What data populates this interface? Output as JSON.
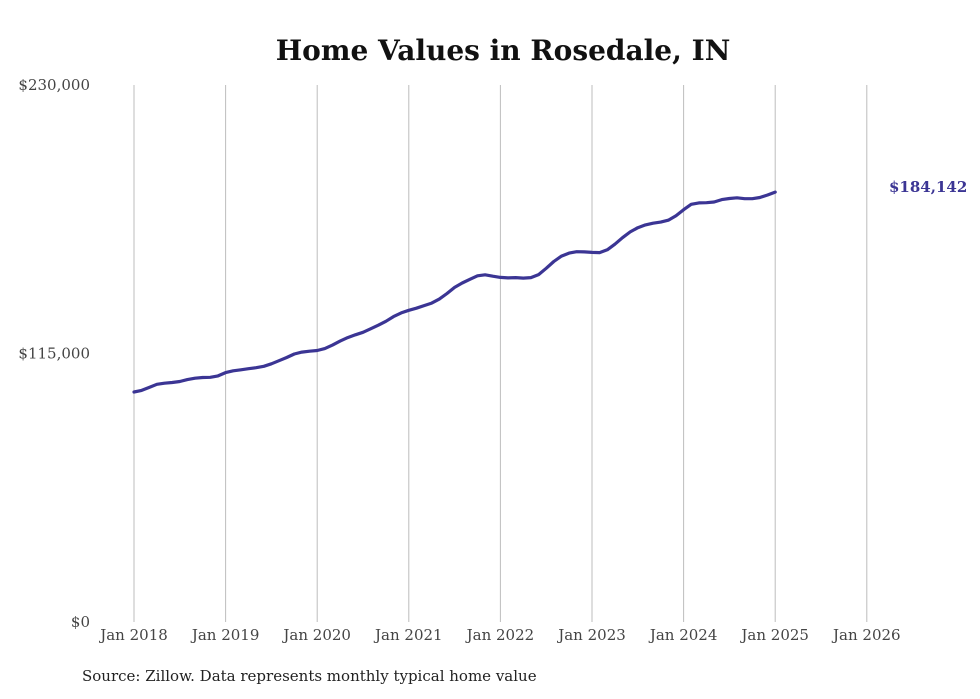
{
  "chart_data": {
    "type": "line",
    "title": "Home Values in Rosedale, IN",
    "xlabel": "",
    "ylabel": "",
    "ylim": [
      0,
      230000
    ],
    "y_ticks": [
      0,
      115000,
      230000
    ],
    "y_tick_labels": [
      "$0",
      "$115,000",
      "$230,000"
    ],
    "x_tick_labels": [
      "Jan 2018",
      "Jan 2019",
      "Jan 2020",
      "Jan 2021",
      "Jan 2022",
      "Jan 2023",
      "Jan 2024",
      "Jan 2025",
      "Jan 2026"
    ],
    "grid": "vertical",
    "line_color": "#3b3594",
    "end_label": "$184,142",
    "series": [
      {
        "name": "Typical home value",
        "start": "2018-01",
        "values": [
          98500,
          99200,
          100500,
          101800,
          102300,
          102600,
          103000,
          103800,
          104400,
          104700,
          104800,
          105400,
          106800,
          107600,
          108000,
          108500,
          108900,
          109500,
          110600,
          111900,
          113300,
          114800,
          115600,
          116000,
          116300,
          117100,
          118600,
          120300,
          121800,
          123000,
          124100,
          125600,
          127100,
          128800,
          130800,
          132400,
          133500,
          134400,
          135500,
          136600,
          138300,
          140700,
          143300,
          145200,
          146800,
          148300,
          148700,
          148100,
          147600,
          147400,
          147500,
          147300,
          147500,
          148800,
          151500,
          154400,
          156700,
          158000,
          158600,
          158500,
          158300,
          158200,
          159400,
          161800,
          164600,
          167100,
          168900,
          170100,
          170800,
          171300,
          172100,
          174000,
          176600,
          178900,
          179500,
          179600,
          179900,
          180900,
          181400,
          181700,
          181300,
          181300,
          181800,
          182900,
          184142
        ]
      }
    ]
  },
  "footer": {
    "source": "Source: Zillow. Data represents monthly typical home value"
  }
}
